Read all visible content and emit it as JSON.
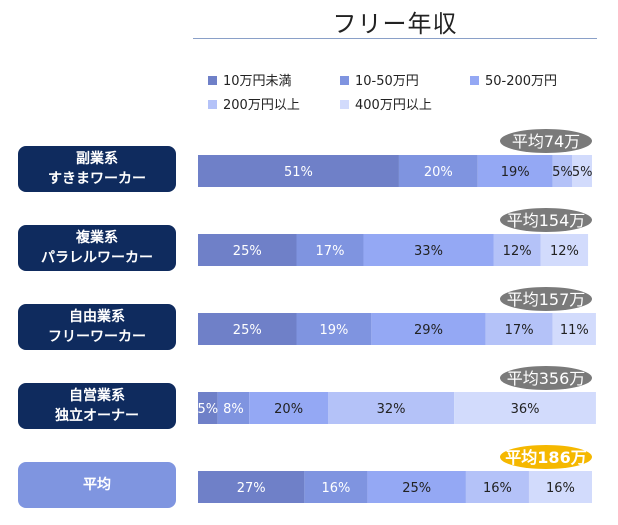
{
  "title": "フリー年収",
  "colors": {
    "label_dark": "#0f2b5e",
    "label_average": "#7f95e0",
    "badge_gray": "#7a7a7a",
    "badge_highlight": "#f5b800"
  },
  "chart_data": {
    "type": "bar",
    "orientation": "horizontal",
    "stacked": "percent",
    "title": "フリー年収",
    "legend_position": "top",
    "xlim": [
      0,
      100
    ],
    "categories": [
      [
        "副業系",
        "すきまワーカー"
      ],
      [
        "複業系",
        "パラレルワーカー"
      ],
      [
        "自由業系",
        "フリーワーカー"
      ],
      [
        "自営業系",
        "独立オーナー"
      ],
      [
        "平均"
      ]
    ],
    "series": [
      {
        "name": "10万円未満",
        "color": "#6f80c8",
        "values": [
          51,
          25,
          25,
          5,
          27
        ]
      },
      {
        "name": "10-50万円",
        "color": "#7f94e0",
        "values": [
          20,
          17,
          19,
          8,
          16
        ]
      },
      {
        "name": "50-200万円",
        "color": "#94a8f4",
        "values": [
          19,
          33,
          29,
          20,
          25
        ]
      },
      {
        "name": "200万円以上",
        "color": "#b4c2f8",
        "values": [
          5,
          12,
          17,
          32,
          16
        ]
      },
      {
        "name": "400万円以上",
        "color": "#d2dbfc",
        "values": [
          5,
          12,
          11,
          36,
          16
        ]
      }
    ],
    "data_labels": [
      [
        "51%",
        "20%",
        "19%",
        "5%",
        "5%"
      ],
      [
        "25%",
        "17%",
        "33%",
        "12%",
        "12%"
      ],
      [
        "25%",
        "19%",
        "29%",
        "17%",
        "11%"
      ],
      [
        "5%",
        "8%",
        "20%",
        "32%",
        "36%"
      ],
      [
        "27%",
        "16%",
        "25%",
        "16%",
        "16%"
      ]
    ],
    "averages": [
      "平均74万",
      "平均154万",
      "平均157万",
      "平均356万",
      "平均186万"
    ],
    "highlighted_average_index": 4
  }
}
